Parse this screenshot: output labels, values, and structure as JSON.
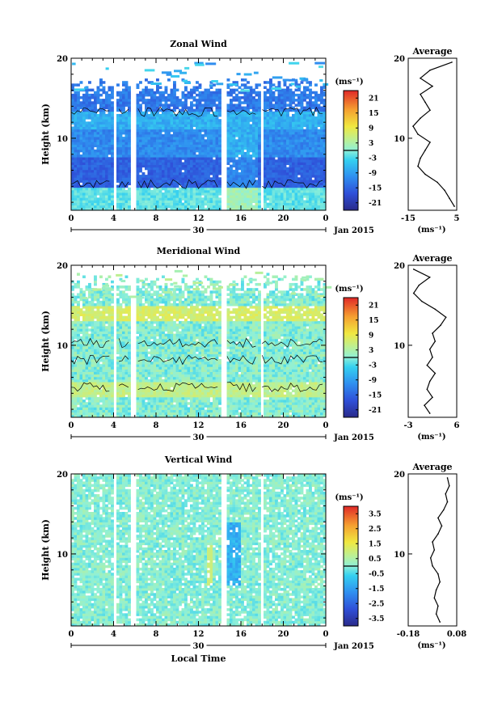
{
  "chart_data": [
    {
      "type": "heatmap",
      "title": "Zonal Wind",
      "ylabel": "Height (km)",
      "xlim": [
        0,
        24
      ],
      "ylim": [
        1,
        20
      ],
      "x_ticks": [
        "0",
        "4",
        "8",
        "12",
        "16",
        "20",
        "0"
      ],
      "y_ticks": [
        "10",
        "20"
      ],
      "date_label": "30",
      "date_suffix": "Jan 2015",
      "colorbar": {
        "unit": "(ms⁻¹)",
        "ticks": [
          "21",
          "15",
          "9",
          "3",
          "-3",
          "-9",
          "-15",
          "-21"
        ],
        "range": [
          -24,
          24
        ]
      },
      "profile": {
        "title": "Average",
        "xlabel": "(ms⁻¹)",
        "x_ticks": [
          "-15",
          "5"
        ],
        "y_ticks": [
          "20",
          "10"
        ],
        "xlim": [
          -15,
          5
        ],
        "heights": [
          1.5,
          2.5,
          3.5,
          4.5,
          5.5,
          6.5,
          7.5,
          8.5,
          9.5,
          10.5,
          11.5,
          12.5,
          13.5,
          14.5,
          15.5,
          16.5,
          17.5,
          18.5,
          19.5
        ],
        "values": [
          4,
          2,
          0,
          -3,
          -8,
          -11,
          -10,
          -8,
          -6,
          -11,
          -13,
          -10,
          -6,
          -8,
          -10,
          -5,
          -10,
          -6,
          3
        ]
      }
    },
    {
      "type": "heatmap",
      "title": "Meridional Wind",
      "ylabel": "Height (km)",
      "xlim": [
        0,
        24
      ],
      "ylim": [
        1,
        20
      ],
      "x_ticks": [
        "0",
        "4",
        "8",
        "12",
        "16",
        "20",
        "0"
      ],
      "y_ticks": [
        "10",
        "20"
      ],
      "date_label": "30",
      "date_suffix": "Jan 2015",
      "colorbar": {
        "unit": "(ms⁻¹)",
        "ticks": [
          "21",
          "15",
          "9",
          "3",
          "-3",
          "-9",
          "-15",
          "-21"
        ],
        "range": [
          -24,
          24
        ]
      },
      "profile": {
        "title": "Average",
        "xlabel": "(ms⁻¹)",
        "x_ticks": [
          "-3",
          "6"
        ],
        "y_ticks": [
          "20",
          "10"
        ],
        "xlim": [
          -3,
          6
        ],
        "heights": [
          1.5,
          2.5,
          3.5,
          4.5,
          5.5,
          6.5,
          7.5,
          8.5,
          9.5,
          10.5,
          11.5,
          12.5,
          13.5,
          14.5,
          15.5,
          16.5,
          17.5,
          18.5,
          19.5
        ],
        "values": [
          1,
          0,
          1.5,
          0.5,
          1,
          2,
          0.5,
          1.5,
          1,
          2,
          1.5,
          3,
          4,
          2,
          -0.5,
          -2,
          -1,
          1,
          -2
        ]
      }
    },
    {
      "type": "heatmap",
      "title": "Vertical Wind",
      "xlabel": "Local Time",
      "ylabel": "Height (km)",
      "xlim": [
        0,
        24
      ],
      "ylim": [
        1,
        20
      ],
      "x_ticks": [
        "0",
        "4",
        "8",
        "12",
        "16",
        "20",
        "0"
      ],
      "y_ticks": [
        "10",
        "20"
      ],
      "date_label": "30",
      "date_suffix": "Jan 2015",
      "colorbar": {
        "unit": "(ms⁻¹)",
        "ticks": [
          "3.5",
          "2.5",
          "1.5",
          "0.5",
          "-0.5",
          "-1.5",
          "-2.5",
          "-3.5"
        ],
        "range": [
          -4,
          4
        ]
      },
      "profile": {
        "title": "Average",
        "xlabel": "(ms⁻¹)",
        "x_ticks": [
          "-0.18",
          "0.08"
        ],
        "y_ticks": [
          "20",
          "10"
        ],
        "xlim": [
          -0.18,
          0.08
        ],
        "heights": [
          1.5,
          2.5,
          3.5,
          4.5,
          5.5,
          6.5,
          7.5,
          8.5,
          9.5,
          10.5,
          11.5,
          12.5,
          13.5,
          14.5,
          15.5,
          16.5,
          17.5,
          18.5,
          19.5
        ],
        "values": [
          -0.01,
          -0.03,
          -0.02,
          -0.04,
          -0.03,
          -0.01,
          -0.02,
          -0.05,
          -0.06,
          -0.04,
          -0.05,
          -0.02,
          0.0,
          -0.02,
          0.01,
          0.03,
          0.02,
          0.04,
          0.03
        ]
      }
    }
  ]
}
